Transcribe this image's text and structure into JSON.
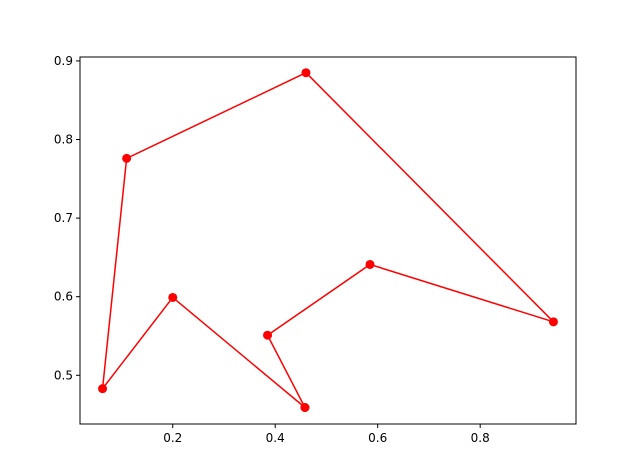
{
  "chart_data": {
    "type": "line",
    "title": "",
    "xlabel": "",
    "ylabel": "",
    "xlim": [
      0.019,
      0.987
    ],
    "ylim": [
      0.438,
      0.905
    ],
    "grid": false,
    "x_ticks": [
      0.2,
      0.4,
      0.6,
      0.8
    ],
    "x_tick_labels": [
      "0.2",
      "0.4",
      "0.6",
      "0.8"
    ],
    "y_ticks": [
      0.5,
      0.6,
      0.7,
      0.8,
      0.9
    ],
    "y_tick_labels": [
      "0.5",
      "0.6",
      "0.7",
      "0.8",
      "0.9"
    ],
    "series": [
      {
        "color": "#ff0000",
        "marker": "circle",
        "x": [
          0.458,
          0.2,
          0.063,
          0.11,
          0.46,
          0.943,
          0.585,
          0.385,
          0.458
        ],
        "y": [
          0.459,
          0.599,
          0.483,
          0.776,
          0.885,
          0.568,
          0.641,
          0.551,
          0.459
        ]
      }
    ]
  }
}
